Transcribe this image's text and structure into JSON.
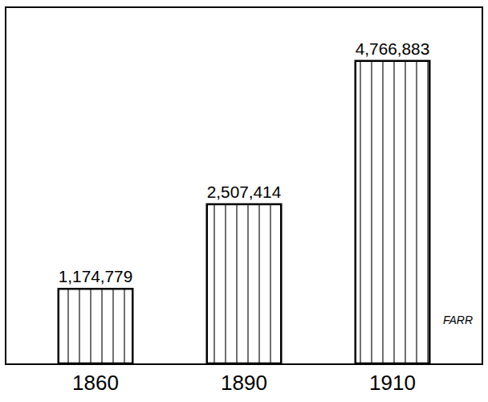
{
  "chart_data": {
    "type": "bar",
    "categories": [
      "1860",
      "1890",
      "1910"
    ],
    "values": [
      1174779,
      2507414,
      4766883
    ],
    "value_labels": [
      "1,174,779",
      "2,507,414",
      "4,766,883"
    ],
    "data_labels": true,
    "color": "#ffffff",
    "ylim": [
      0,
      5600000
    ],
    "tick_labels": "x",
    "grid": false,
    "annotations": [
      "FARR"
    ]
  }
}
